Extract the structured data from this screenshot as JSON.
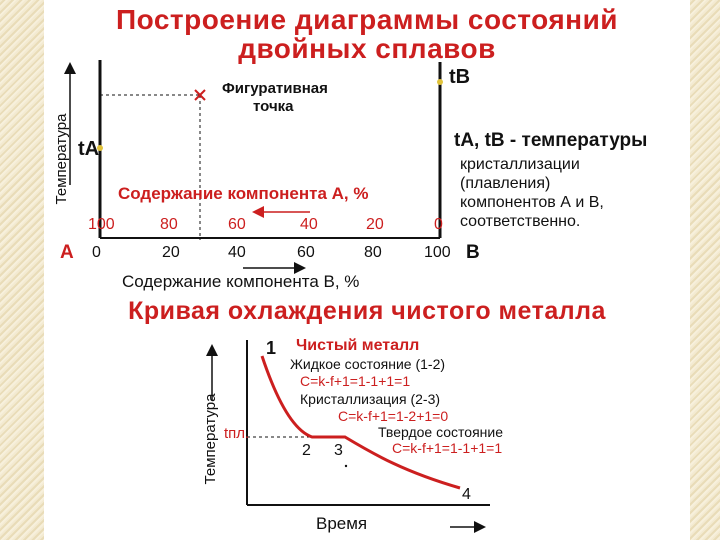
{
  "title": {
    "line1": "Построение диаграммы состояний",
    "line2": "двойных  сплавов"
  },
  "diagram1": {
    "y_axis_label": "Температура",
    "point_b_label": "tB",
    "point_a_label": "tA",
    "figurative_point_label_1": "Фигуративная",
    "figurative_point_label_2": "точка",
    "axis_a_caption": "Содержание компонента А, %",
    "axis_b_caption": "Содержание компонента В, %",
    "a_ticks": [
      "100",
      "80",
      "60",
      "40",
      "20",
      "0"
    ],
    "b_ticks": [
      "0",
      "20",
      "40",
      "60",
      "80",
      "100"
    ],
    "left_component": "A",
    "right_component": "B",
    "note_line1": "tA,  tB  - температуры",
    "note_line2": "кристаллизации",
    "note_line3": "(плавления)",
    "note_line4": "компонентов А и В,",
    "note_line5": "соответственно."
  },
  "cooling_title": "Кривая охлаждения чистого металла",
  "cooling": {
    "y_axis_label": "Температура",
    "x_axis_label": "Время",
    "t_melt_label": "tпл.",
    "pure_metal": "Чистый металл",
    "liquid": "Жидкое состояние (1-2)",
    "liquid_formula": "C=k-f+1=1-1+1=1",
    "crystallization": "Кристаллизация (2-3)",
    "crystallization_formula": "C=k-f+1=1-2+1=0",
    "solid": "Твердое состояние",
    "solid_formula": "C=k-f+1=1-1+1=1",
    "p1": "1",
    "p2": "2",
    "p3": "3",
    "p4": "4"
  }
}
